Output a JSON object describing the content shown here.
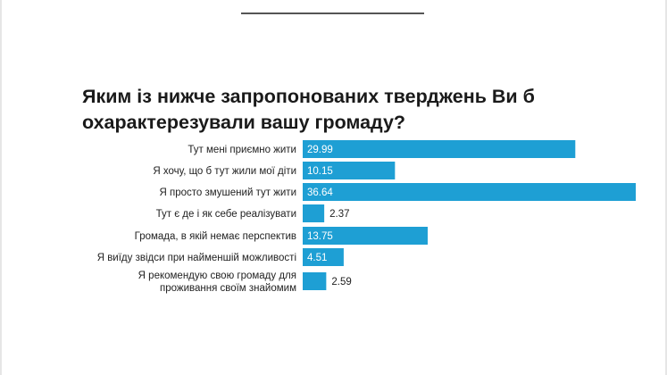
{
  "chart_data": {
    "type": "bar",
    "orientation": "horizontal",
    "title": "Яким із нижче запропонованих тверджень Ви б охарактерезували вашу громаду?",
    "categories": [
      "Тут мені приємно жити",
      "Я хочу, що б тут жили мої діти",
      "Я просто змушений тут жити",
      "Тут є де і як себе реалізувати",
      "Громада, в якій немає перспектив",
      "Я виїду звідси при найменшій можливості",
      "Я рекомендую свою громаду для проживання своїм знайомим"
    ],
    "values": [
      29.99,
      10.15,
      36.64,
      2.37,
      13.75,
      4.51,
      2.59
    ],
    "value_labels": [
      "29.99",
      "10.15",
      "36.64",
      "2.37",
      "13.75",
      "4.51",
      "2.59"
    ],
    "category_lines": [
      [
        "Тут мені приємно жити"
      ],
      [
        "Я хочу, що б тут жили мої діти"
      ],
      [
        "Я просто змушений тут жити"
      ],
      [
        "Тут є де і як себе реалізувати"
      ],
      [
        "Громада, в якій немає перспектив"
      ],
      [
        "Я виїду звідси при найменшій можливості"
      ],
      [
        "Я рекомендую свою громаду для",
        "проживання своїм знайомим"
      ]
    ],
    "xlim": [
      0,
      36.64
    ],
    "grid": false,
    "legend": "none",
    "colors": {
      "bar": "#1e9fd4",
      "label_inside": "#ffffff",
      "label_outside": "#222222"
    }
  }
}
